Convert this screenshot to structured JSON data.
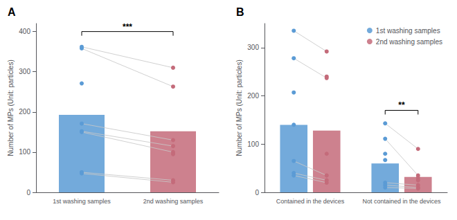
{
  "chart_data": [
    {
      "type": "bar",
      "title": "A",
      "categories": [
        "1st washing samples",
        "2nd washing samples"
      ],
      "values": [
        193,
        152
      ],
      "colors": [
        "#5B9BD5",
        "#C46B7A"
      ],
      "ylabel": "Number of MPs (Unit: particles)",
      "ylim": [
        0,
        420
      ],
      "yticks": [
        0,
        100,
        200,
        300,
        400
      ],
      "grid": false,
      "dots": [
        {
          "color": "#5B9BD5",
          "values": [
            362,
            358,
            271,
            171,
            152,
            150,
            50,
            47
          ]
        },
        {
          "color": "#C46B7A",
          "values": [
            310,
            263,
            130,
            115,
            100,
            95,
            30,
            25
          ]
        }
      ],
      "connectors": {
        "color": "#C8C8C8",
        "values": [
          [
            362,
            310
          ],
          [
            358,
            263
          ],
          [
            171,
            130
          ],
          [
            152,
            115
          ],
          [
            150,
            100
          ],
          [
            50,
            30
          ],
          [
            47,
            25
          ]
        ]
      },
      "annotations": [
        {
          "text": "***",
          "y": 400,
          "between": [
            "1st washing samples",
            "2nd washing samples"
          ]
        }
      ]
    },
    {
      "type": "bar",
      "title": "B",
      "categories": [
        "Contained in the devices",
        "Not contained in the devices"
      ],
      "series": [
        {
          "name": "1st washing samples",
          "color": "#5B9BD5",
          "values": [
            140,
            60
          ],
          "dots": [
            [
              335,
              278,
              207,
              140,
              65,
              40,
              35
            ],
            [
              143,
              111,
              80,
              67,
              20,
              15,
              10
            ]
          ]
        },
        {
          "name": "2nd washing samples",
          "color": "#C46B7A",
          "values": [
            128,
            32
          ],
          "dots": [
            [
              292,
              240,
              237,
              80,
              35,
              25,
              20
            ],
            [
              90,
              35,
              30,
              25,
              15,
              10,
              8
            ]
          ]
        }
      ],
      "ylabel": "Number of MPs (Unit: particles)",
      "ylim": [
        0,
        350
      ],
      "yticks": [
        0,
        100,
        200,
        300
      ],
      "grid": false,
      "legend": "upper right",
      "connectors": {
        "color": "#C8C8C8",
        "values": [
          [
            [
              335,
              292
            ],
            [
              278,
              237
            ],
            [
              65,
              35
            ],
            [
              40,
              25
            ],
            [
              35,
              20
            ]
          ],
          [
            [
              143,
              90
            ],
            [
              111,
              35
            ],
            [
              20,
              15
            ],
            [
              15,
              10
            ],
            [
              10,
              8
            ]
          ]
        ]
      },
      "annotations": [
        {
          "text": "**",
          "y": 170,
          "category": "Not contained in the devices",
          "between": [
            "1st washing samples",
            "2nd washing samples"
          ]
        }
      ]
    }
  ]
}
